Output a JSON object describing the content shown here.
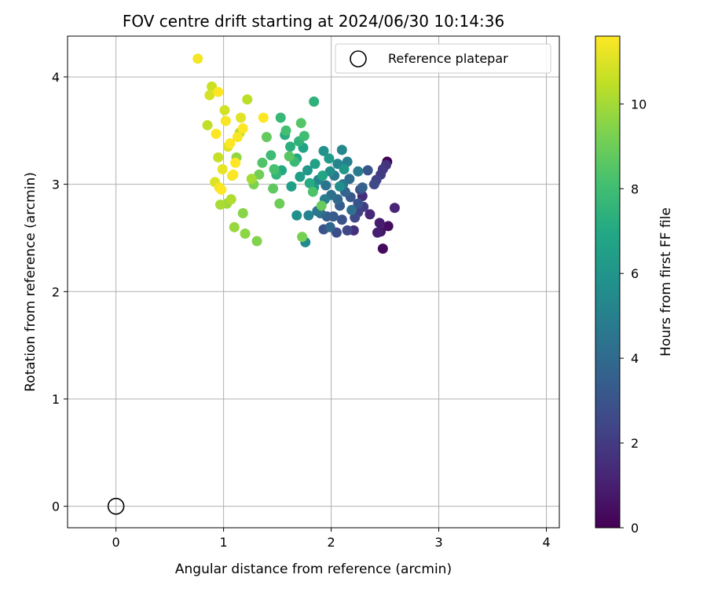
{
  "chart_data": {
    "type": "scatter",
    "title": "FOV centre drift starting at 2024/06/30 10:14:36",
    "xlabel": "Angular distance from reference (arcmin)",
    "ylabel": "Rotation from reference (arcmin)",
    "xlim": [
      -0.45,
      4.12
    ],
    "ylim": [
      -0.2,
      4.38
    ],
    "xticks": [
      "0",
      "1",
      "2",
      "3",
      "4"
    ],
    "yticks": [
      "0",
      "1",
      "2",
      "3",
      "4"
    ],
    "grid": true,
    "colormap": "viridis",
    "colorbar": {
      "label": "Hours from first FF file",
      "range": [
        0,
        11.6
      ],
      "ticks": [
        "0",
        "2",
        "4",
        "6",
        "8",
        "10"
      ]
    },
    "legend": {
      "position": "top-right",
      "entries": [
        "Reference platepar"
      ]
    },
    "reference_point": {
      "x": 0,
      "y": 0
    },
    "points": [
      [
        2.52,
        3.21,
        0.0
      ],
      [
        2.48,
        2.4,
        0.3
      ],
      [
        2.53,
        2.61,
        0.4
      ],
      [
        2.46,
        2.56,
        0.7
      ],
      [
        2.45,
        2.64,
        0.9
      ],
      [
        2.43,
        2.55,
        1.0
      ],
      [
        2.59,
        2.78,
        1.2
      ],
      [
        2.36,
        2.72,
        1.3
      ],
      [
        2.29,
        2.89,
        1.5
      ],
      [
        2.21,
        2.57,
        1.6
      ],
      [
        2.51,
        3.18,
        1.7
      ],
      [
        2.48,
        3.14,
        1.9
      ],
      [
        2.46,
        3.09,
        2.0
      ],
      [
        2.3,
        2.79,
        2.1
      ],
      [
        2.25,
        2.74,
        2.2
      ],
      [
        2.42,
        3.04,
        2.3
      ],
      [
        2.15,
        2.57,
        2.4
      ],
      [
        2.22,
        2.69,
        2.5
      ],
      [
        2.4,
        3.0,
        2.6
      ],
      [
        2.05,
        2.55,
        2.7
      ],
      [
        2.27,
        2.95,
        2.8
      ],
      [
        2.1,
        2.67,
        2.9
      ],
      [
        2.25,
        2.82,
        3.0
      ],
      [
        1.93,
        2.58,
        3.0
      ],
      [
        2.34,
        3.13,
        3.1
      ],
      [
        2.18,
        2.88,
        3.2
      ],
      [
        2.02,
        2.7,
        3.3
      ],
      [
        2.08,
        2.8,
        3.4
      ],
      [
        1.96,
        2.7,
        3.5
      ],
      [
        2.29,
        2.97,
        3.6
      ],
      [
        2.13,
        2.93,
        3.7
      ],
      [
        1.99,
        2.6,
        3.8
      ],
      [
        2.06,
        2.86,
        3.9
      ],
      [
        1.9,
        2.73,
        4.0
      ],
      [
        2.17,
        3.05,
        4.1
      ],
      [
        2.0,
        2.9,
        4.2
      ],
      [
        2.19,
        2.76,
        4.3
      ],
      [
        1.95,
        2.99,
        4.4
      ],
      [
        2.11,
        3.0,
        4.5
      ],
      [
        1.87,
        2.75,
        4.6
      ],
      [
        2.03,
        3.08,
        4.7
      ],
      [
        2.25,
        3.12,
        4.8
      ],
      [
        1.94,
        2.86,
        4.9
      ],
      [
        2.15,
        3.21,
        5.0
      ],
      [
        1.79,
        2.71,
        5.1
      ],
      [
        2.06,
        3.19,
        5.2
      ],
      [
        1.88,
        3.04,
        5.3
      ],
      [
        2.1,
        3.32,
        5.4
      ],
      [
        1.76,
        2.46,
        5.5
      ],
      [
        1.99,
        3.12,
        5.6
      ],
      [
        2.08,
        2.98,
        5.7
      ],
      [
        1.68,
        2.71,
        5.8
      ],
      [
        1.93,
        3.31,
        5.9
      ],
      [
        1.84,
        2.97,
        6.0
      ],
      [
        2.12,
        3.14,
        6.1
      ],
      [
        1.78,
        3.13,
        6.2
      ],
      [
        1.98,
        3.24,
        6.3
      ],
      [
        1.71,
        3.07,
        6.4
      ],
      [
        1.63,
        2.98,
        6.5
      ],
      [
        1.85,
        3.19,
        6.6
      ],
      [
        1.74,
        3.34,
        6.7
      ],
      [
        1.92,
        3.08,
        6.8
      ],
      [
        1.68,
        3.24,
        6.9
      ],
      [
        1.54,
        3.13,
        7.0
      ],
      [
        1.8,
        3.01,
        7.1
      ],
      [
        1.57,
        3.46,
        7.2
      ],
      [
        1.62,
        3.35,
        7.3
      ],
      [
        1.84,
        3.77,
        7.4
      ],
      [
        1.7,
        3.4,
        7.5
      ],
      [
        1.49,
        3.09,
        7.6
      ],
      [
        1.53,
        3.62,
        7.7
      ],
      [
        1.66,
        3.21,
        7.8
      ],
      [
        1.44,
        3.27,
        7.9
      ],
      [
        1.75,
        3.45,
        8.0
      ],
      [
        1.58,
        3.5,
        8.1
      ],
      [
        1.47,
        3.14,
        8.2
      ],
      [
        1.83,
        2.93,
        8.3
      ],
      [
        1.36,
        3.2,
        8.4
      ],
      [
        1.72,
        3.57,
        8.5
      ],
      [
        1.61,
        3.26,
        8.6
      ],
      [
        1.46,
        2.96,
        8.7
      ],
      [
        1.4,
        3.44,
        8.8
      ],
      [
        1.91,
        2.8,
        8.9
      ],
      [
        1.52,
        2.82,
        9.0
      ],
      [
        1.33,
        3.09,
        9.1
      ],
      [
        1.73,
        2.51,
        9.2
      ],
      [
        1.28,
        3.0,
        9.3
      ],
      [
        1.31,
        2.47,
        9.4
      ],
      [
        1.18,
        2.73,
        9.5
      ],
      [
        1.2,
        2.54,
        9.6
      ],
      [
        1.12,
        3.25,
        9.7
      ],
      [
        1.1,
        2.6,
        9.8
      ],
      [
        1.03,
        2.82,
        9.9
      ],
      [
        1.26,
        3.05,
        10.0
      ],
      [
        0.97,
        2.81,
        10.1
      ],
      [
        1.07,
        2.86,
        10.2
      ],
      [
        1.15,
        3.48,
        10.3
      ],
      [
        1.22,
        3.79,
        10.4
      ],
      [
        0.85,
        3.55,
        10.5
      ],
      [
        0.95,
        3.25,
        10.6
      ],
      [
        0.89,
        3.91,
        10.7
      ],
      [
        1.01,
        3.69,
        10.8
      ],
      [
        0.87,
        3.83,
        10.9
      ],
      [
        0.92,
        3.02,
        11.0
      ],
      [
        1.04,
        3.35,
        11.0
      ],
      [
        1.16,
        3.62,
        11.1
      ],
      [
        0.99,
        3.14,
        11.2
      ],
      [
        1.08,
        3.08,
        11.3
      ],
      [
        0.76,
        4.17,
        11.4
      ],
      [
        0.96,
        2.97,
        11.4
      ],
      [
        1.13,
        3.44,
        11.5
      ],
      [
        1.02,
        3.59,
        11.5
      ],
      [
        0.93,
        3.47,
        11.6
      ],
      [
        1.11,
        3.2,
        11.6
      ],
      [
        1.37,
        3.62,
        11.6
      ],
      [
        0.98,
        2.95,
        11.6
      ],
      [
        1.06,
        3.38,
        11.6
      ],
      [
        1.18,
        3.52,
        11.6
      ],
      [
        0.95,
        3.86,
        11.6
      ],
      [
        1.09,
        3.09,
        11.6
      ]
    ]
  }
}
